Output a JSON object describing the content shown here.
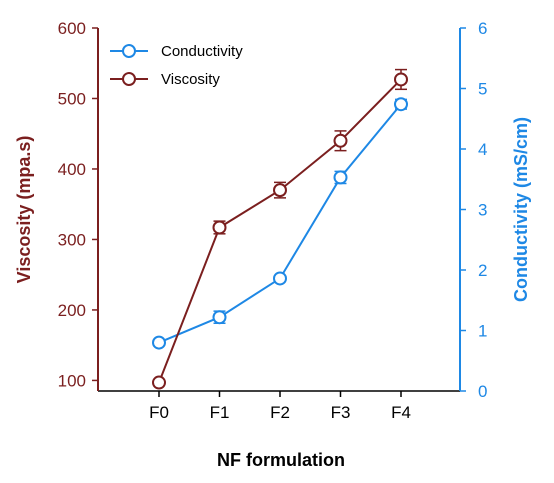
{
  "chart_data": {
    "type": "line",
    "xlabel": "NF formulation",
    "categories": [
      "F0",
      "F1",
      "F2",
      "F3",
      "F4"
    ],
    "left_axis": {
      "label": "Viscosity (mpa.s)",
      "ylim": [
        85,
        600
      ],
      "ticks": [
        100,
        200,
        300,
        400,
        500,
        600
      ],
      "color": "#7b1f1f"
    },
    "right_axis": {
      "label": "Conductivity (mS/cm)",
      "ylim": [
        0,
        6
      ],
      "ticks": [
        0,
        1,
        2,
        3,
        4,
        5,
        6
      ],
      "color": "#1e88e5"
    },
    "series": [
      {
        "name": "Conductivity",
        "axis": "right",
        "color": "#1e88e5",
        "values": [
          0.8,
          1.22,
          1.86,
          3.53,
          4.74
        ],
        "errors": [
          0,
          0.1,
          0,
          0.1,
          0.08
        ]
      },
      {
        "name": "Viscosity",
        "axis": "left",
        "color": "#7b1f1f",
        "values": [
          97,
          317,
          370,
          440,
          527
        ],
        "errors": [
          0,
          9,
          11,
          14,
          14
        ]
      }
    ],
    "legend": "top-left",
    "grid": false
  }
}
